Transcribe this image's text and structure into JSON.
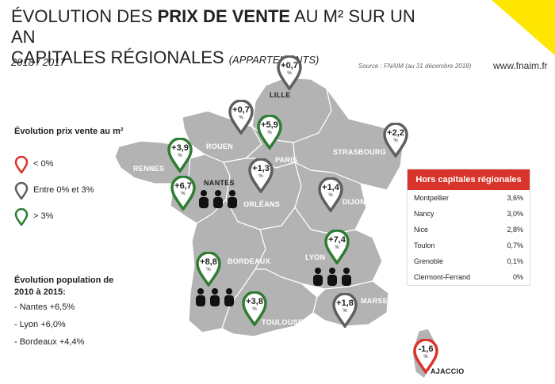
{
  "title": {
    "line1_pre": "ÉVOLUTION DES ",
    "line1_bold": "PRIX DE VENTE",
    "line1_post": " AU M² SUR UN AN",
    "line2": "CAPITALES RÉGIONALES ",
    "line2_sub": "(APPARTEMENTS)"
  },
  "years": "2018 / 2017",
  "source": "Source : FNAIM (au 31 décembre 2018)",
  "site": "www.fnaim.fr",
  "colors": {
    "red": "#d9342b",
    "gray": "#5f5f61",
    "green": "#2f7d32",
    "map": "#b3b3b3",
    "yellow": "#ffe600"
  },
  "legend": {
    "title": "Évolution prix vente au m²",
    "items": [
      {
        "label": "< 0%",
        "color": "red"
      },
      {
        "label": "Entre 0% et 3%",
        "color": "gray"
      },
      {
        "label": "> 3%",
        "color": "green"
      }
    ]
  },
  "population": {
    "title": "Évolution population de 2010 à 2015:",
    "items": [
      "- Nantes +6,5%",
      "- Lyon +6,0%",
      "- Bordeaux +4,4%"
    ]
  },
  "cities": [
    {
      "name": "LILLE",
      "value": "+0,7",
      "color": "gray"
    },
    {
      "name": "ROUEN",
      "value": "+0,7",
      "color": "gray"
    },
    {
      "name": "PARIS",
      "value": "+5,9",
      "color": "green"
    },
    {
      "name": "STRASBOURG",
      "value": "+2,2",
      "color": "gray"
    },
    {
      "name": "RENNES",
      "value": "+3,9",
      "color": "green"
    },
    {
      "name": "NANTES",
      "value": "+6,7",
      "color": "green"
    },
    {
      "name": "ORLÉANS",
      "value": "+1,3",
      "color": "gray"
    },
    {
      "name": "DIJON",
      "value": "+1,4",
      "color": "gray"
    },
    {
      "name": "BORDEAUX",
      "value": "+8,8",
      "color": "green"
    },
    {
      "name": "LYON",
      "value": "+7,4",
      "color": "green"
    },
    {
      "name": "TOULOUSE",
      "value": "+3,8",
      "color": "green"
    },
    {
      "name": "MARSEILLE",
      "value": "+1,8",
      "color": "gray"
    },
    {
      "name": "AJACCIO",
      "value": "-1,6",
      "color": "red"
    }
  ],
  "pct_symbol": "%",
  "table": {
    "header": "Hors capitales régionales",
    "rows": [
      {
        "name": "Montpellier",
        "value": "3,6%"
      },
      {
        "name": "Nancy",
        "value": "3,0%"
      },
      {
        "name": "Nice",
        "value": "2,8%"
      },
      {
        "name": "Toulon",
        "value": "0,7%"
      },
      {
        "name": "Grenoble",
        "value": "0,1%"
      },
      {
        "name": "Clermont-Ferrand",
        "value": "0%"
      }
    ]
  }
}
